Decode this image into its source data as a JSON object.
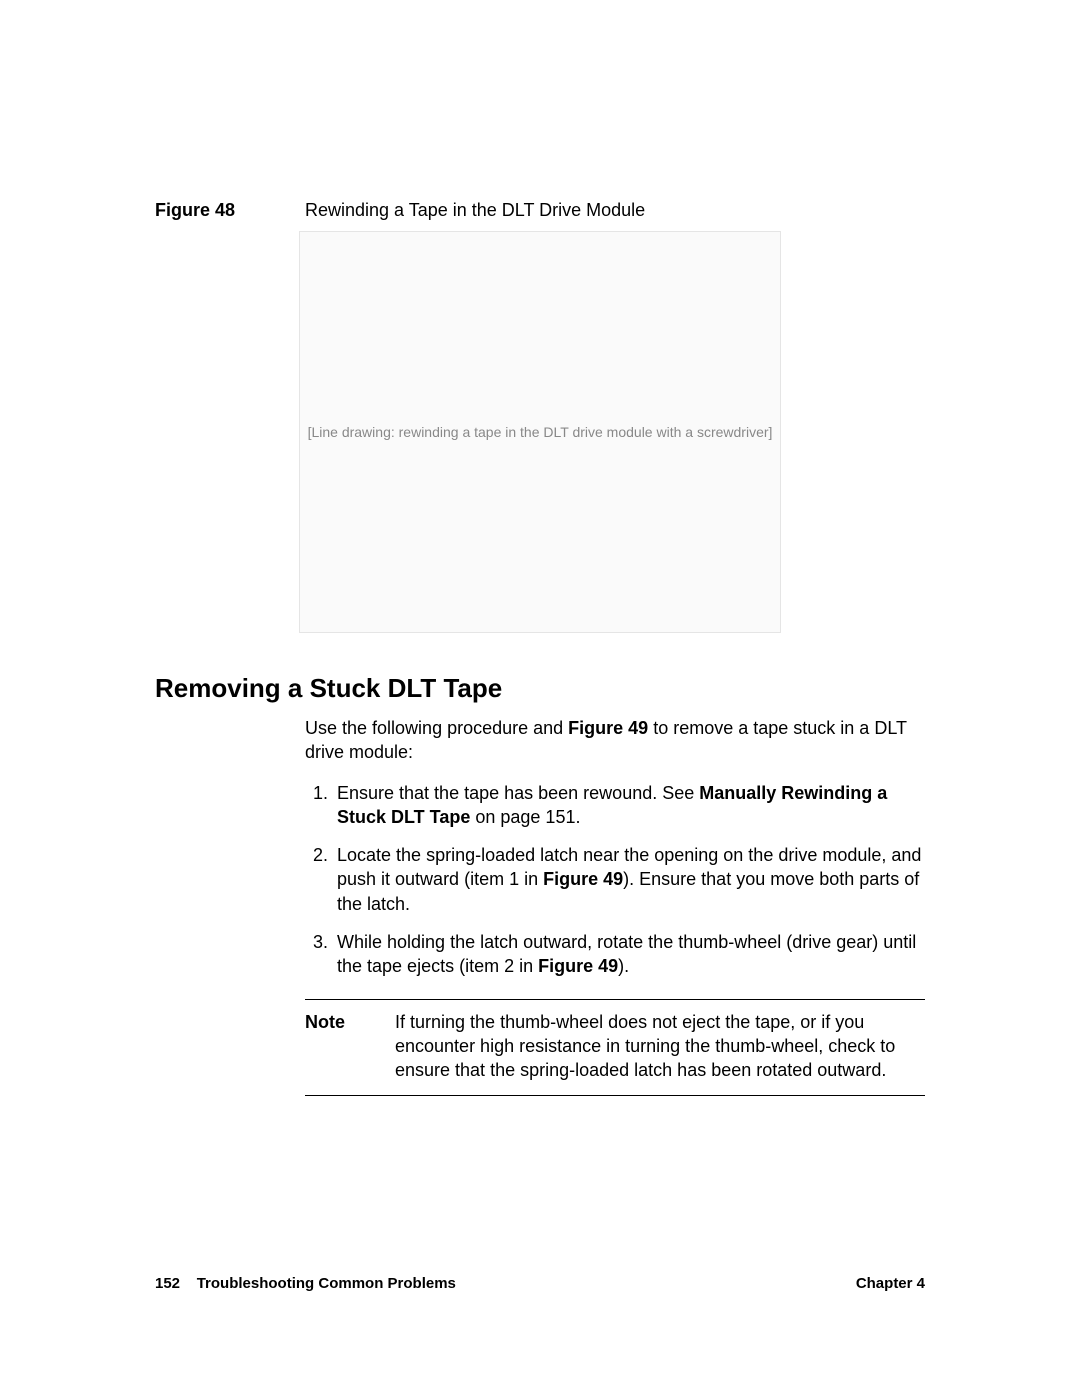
{
  "figure": {
    "label": "Figure 48",
    "title": "Rewinding a Tape in the DLT Drive Module",
    "placeholder": "[Line drawing: rewinding a tape in the DLT drive module with a screwdriver]"
  },
  "section": {
    "heading": "Removing a Stuck DLT Tape",
    "intro_pre": "Use the following procedure and ",
    "intro_ref": "Figure 49",
    "intro_post": " to remove a tape stuck in a DLT drive module:",
    "steps": {
      "s1_pre": "Ensure that the tape has been rewound. See ",
      "s1_bold": "Manually Rewinding a Stuck DLT Tape",
      "s1_post": " on page 151.",
      "s2_pre": "Locate the spring-loaded latch near the opening on the drive module, and push it outward (item 1 in ",
      "s2_ref": "Figure 49",
      "s2_post": "). Ensure that you move both parts of the latch.",
      "s3_pre": "While holding the latch outward, rotate the thumb-wheel (drive gear) until the tape ejects (item 2 in ",
      "s3_ref": "Figure 49",
      "s3_post": ")."
    },
    "note": {
      "label": "Note",
      "text": "If turning the thumb-wheel does not eject the tape, or if you encounter high resistance in turning the thumb-wheel, check to ensure that the spring-loaded latch has been rotated outward."
    }
  },
  "footer": {
    "page_number": "152",
    "section_title": "Troubleshooting Common Problems",
    "chapter": "Chapter 4"
  }
}
